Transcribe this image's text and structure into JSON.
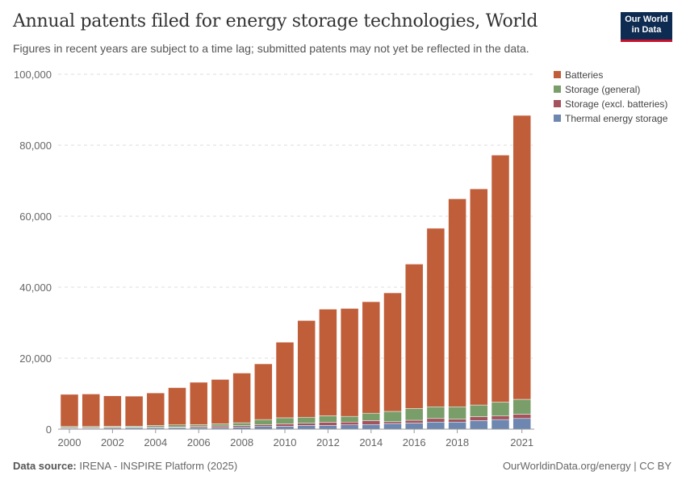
{
  "header": {
    "title": "Annual patents filed for energy storage technologies, World",
    "subtitle": "Figures in recent years are subject to a time lag; submitted patents may not yet be reflected in the data.",
    "logo": "Our World in Data"
  },
  "footer": {
    "source_label": "Data source:",
    "source": "IRENA - INSPIRE Platform (2025)",
    "license": "OurWorldinData.org/energy | CC BY"
  },
  "chart_data": {
    "type": "bar",
    "stacked": true,
    "title": "Annual patents filed for energy storage technologies, World",
    "xlabel": "",
    "ylabel": "",
    "ylim": [
      0,
      100000
    ],
    "yticks": [
      "0",
      "20,000",
      "40,000",
      "60,000",
      "80,000",
      "100,000"
    ],
    "xticks": [
      "2000",
      "2002",
      "2004",
      "2006",
      "2008",
      "2010",
      "2012",
      "2014",
      "2016",
      "2018",
      "2021"
    ],
    "grid": true,
    "legend": "top-right",
    "categories": [
      2000,
      2001,
      2002,
      2003,
      2004,
      2005,
      2006,
      2007,
      2008,
      2009,
      2010,
      2011,
      2012,
      2013,
      2014,
      2015,
      2016,
      2017,
      2018,
      2019,
      2020,
      2021
    ],
    "series": [
      {
        "name": "Thermal energy storage",
        "color": "#6d87b0",
        "values": [
          250,
          250,
          300,
          400,
          400,
          450,
          450,
          450,
          600,
          750,
          800,
          1060,
          1060,
          1200,
          1300,
          1600,
          1700,
          2000,
          2000,
          2400,
          2700,
          3000
        ]
      },
      {
        "name": "Storage (excl. batteries)",
        "color": "#a4525c",
        "values": [
          200,
          200,
          200,
          150,
          200,
          150,
          300,
          450,
          400,
          450,
          700,
          600,
          900,
          800,
          1100,
          500,
          800,
          1000,
          800,
          1100,
          1000,
          1200
        ]
      },
      {
        "name": "Storage (general)",
        "color": "#7a9e6a",
        "values": [
          300,
          300,
          300,
          300,
          450,
          600,
          500,
          600,
          800,
          1500,
          1700,
          1700,
          1800,
          1600,
          2100,
          2900,
          3300,
          3300,
          3500,
          3300,
          3900,
          4200
        ]
      },
      {
        "name": "Batteries",
        "color": "#c15e3a",
        "values": [
          9050,
          9150,
          8600,
          8450,
          9150,
          10500,
          11950,
          12500,
          14000,
          15700,
          21300,
          27240,
          30040,
          30400,
          31400,
          33400,
          40700,
          50300,
          58600,
          60900,
          69600,
          80000
        ]
      }
    ]
  }
}
